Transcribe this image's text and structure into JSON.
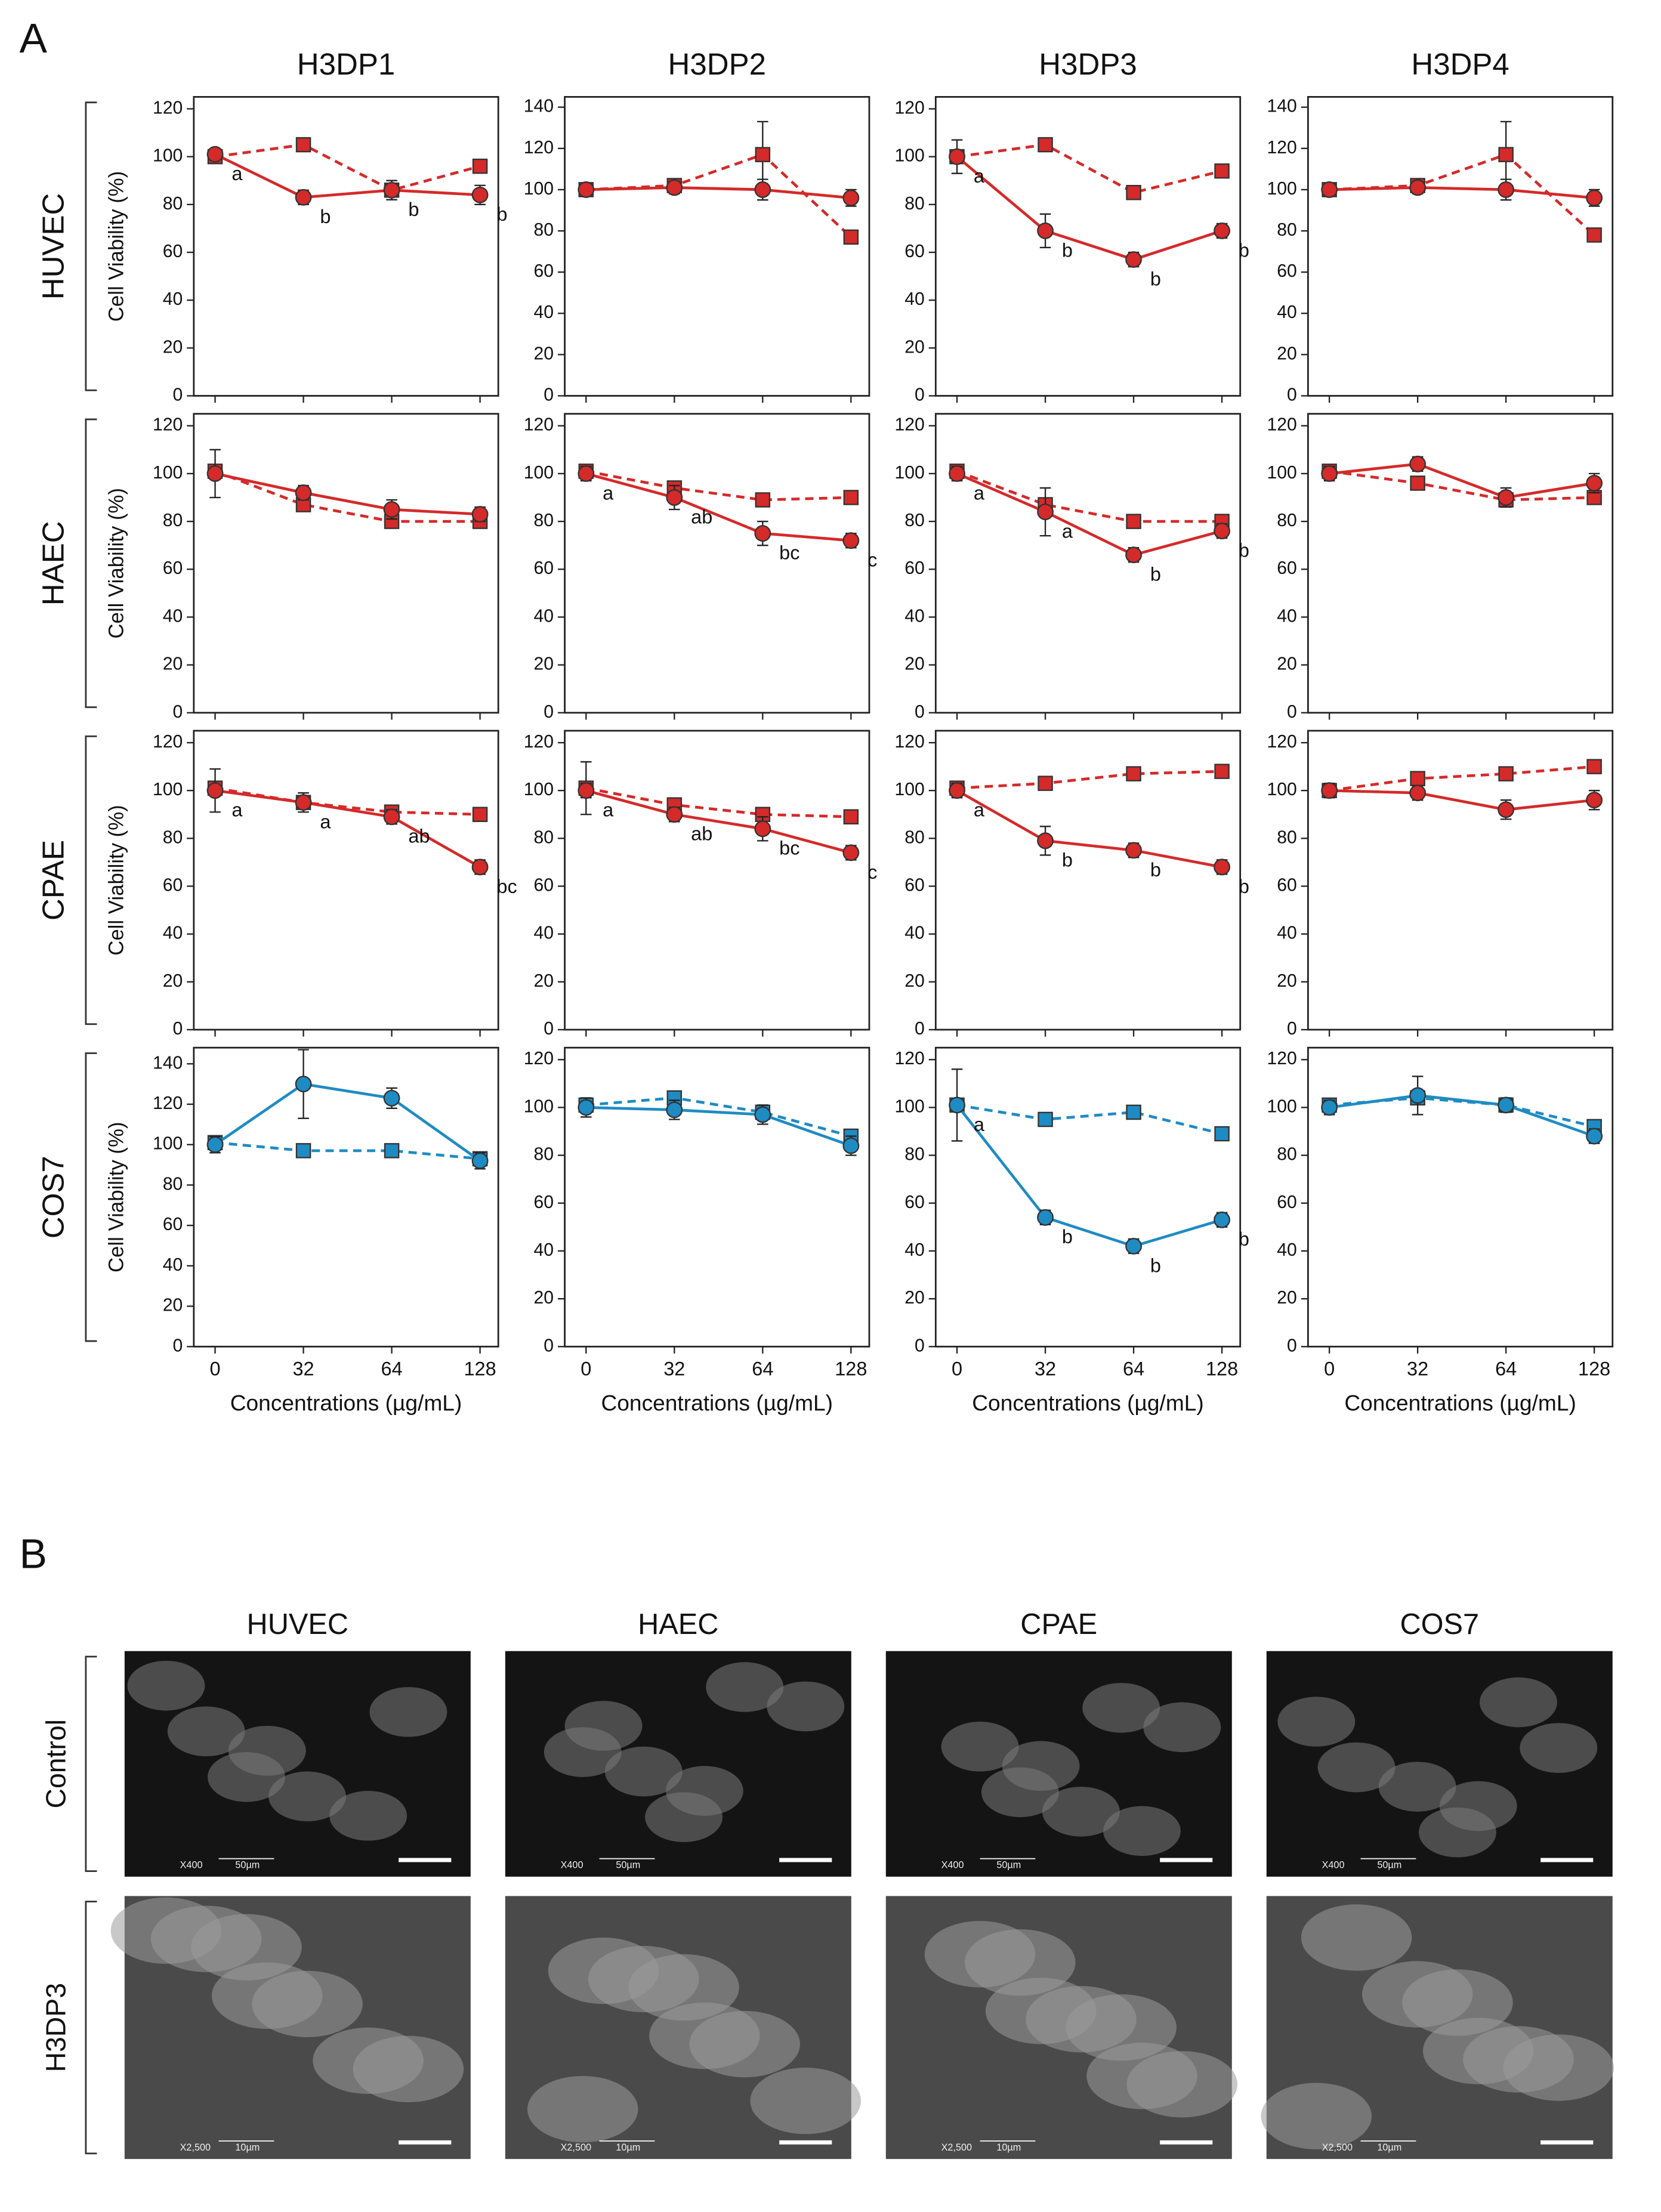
{
  "panels": [
    "A",
    "B"
  ],
  "chart_data": [
    {
      "type": "line",
      "title": "H3DP1",
      "row_label": "HUVEC",
      "row_color": "#d42a2a",
      "ylabel": "Cell Viability (%)",
      "categories": [
        null,
        null,
        null,
        null
      ],
      "ylim": [
        0,
        125
      ],
      "yticks": [
        0,
        20,
        40,
        60,
        80,
        100,
        120
      ],
      "series": [
        {
          "color": "#d42a2a",
          "marker": "circle",
          "dashed": false,
          "values": [
            101,
            83,
            86,
            84
          ],
          "errors": [
            1,
            3,
            4,
            4
          ]
        },
        {
          "color": "#d42a2a",
          "marker": "square",
          "dashed": true,
          "values": [
            100,
            105,
            86,
            96
          ],
          "errors": [
            1,
            1,
            1,
            1
          ]
        }
      ],
      "point_labels": [
        "a",
        "b",
        "b",
        "b"
      ]
    },
    {
      "type": "line",
      "title": "H3DP2",
      "categories": [
        null,
        null,
        null,
        null
      ],
      "ylim": [
        0,
        145
      ],
      "yticks": [
        0,
        20,
        40,
        60,
        80,
        100,
        120,
        140
      ],
      "series": [
        {
          "color": "#d42a2a",
          "marker": "circle",
          "dashed": false,
          "values": [
            100,
            101,
            100,
            96
          ],
          "errors": [
            3,
            3,
            5,
            4
          ]
        },
        {
          "color": "#d42a2a",
          "marker": "square",
          "dashed": true,
          "values": [
            100,
            102,
            117,
            77
          ],
          "errors": [
            2,
            2,
            16,
            2
          ]
        }
      ]
    },
    {
      "type": "line",
      "title": "H3DP3",
      "categories": [
        null,
        null,
        null,
        null
      ],
      "ylim": [
        0,
        125
      ],
      "yticks": [
        0,
        20,
        40,
        60,
        80,
        100,
        120
      ],
      "series": [
        {
          "color": "#d42a2a",
          "marker": "circle",
          "dashed": false,
          "values": [
            100,
            69,
            57,
            69
          ],
          "errors": [
            7,
            7,
            3,
            3
          ]
        },
        {
          "color": "#d42a2a",
          "marker": "square",
          "dashed": true,
          "values": [
            100,
            105,
            85,
            94
          ],
          "errors": [
            2,
            1,
            1,
            1
          ]
        }
      ],
      "point_labels": [
        "a",
        "b",
        "b",
        "b"
      ]
    },
    {
      "type": "line",
      "title": "H3DP4",
      "categories": [
        null,
        null,
        null,
        null
      ],
      "ylim": [
        0,
        145
      ],
      "yticks": [
        0,
        20,
        40,
        60,
        80,
        100,
        120,
        140
      ],
      "series": [
        {
          "color": "#d42a2a",
          "marker": "circle",
          "dashed": false,
          "values": [
            100,
            101,
            100,
            96
          ],
          "errors": [
            3,
            3,
            5,
            4
          ]
        },
        {
          "color": "#d42a2a",
          "marker": "square",
          "dashed": true,
          "values": [
            100,
            102,
            117,
            78
          ],
          "errors": [
            2,
            2,
            16,
            2
          ]
        }
      ]
    },
    {
      "type": "line",
      "row_label": "HAEC",
      "row_color": "#d42a2a",
      "ylabel": "Cell Viability (%)",
      "categories": [
        null,
        null,
        null,
        null
      ],
      "ylim": [
        0,
        125
      ],
      "yticks": [
        0,
        20,
        40,
        60,
        80,
        100,
        120
      ],
      "series": [
        {
          "color": "#d42a2a",
          "marker": "circle",
          "dashed": false,
          "values": [
            100,
            92,
            85,
            83
          ],
          "errors": [
            10,
            3,
            4,
            3
          ]
        },
        {
          "color": "#d42a2a",
          "marker": "square",
          "dashed": true,
          "values": [
            101,
            87,
            80,
            80
          ],
          "errors": [
            1,
            1,
            1,
            1
          ]
        }
      ]
    },
    {
      "type": "line",
      "categories": [
        null,
        null,
        null,
        null
      ],
      "ylim": [
        0,
        125
      ],
      "yticks": [
        0,
        20,
        40,
        60,
        80,
        100,
        120
      ],
      "series": [
        {
          "color": "#d42a2a",
          "marker": "circle",
          "dashed": false,
          "values": [
            100,
            90,
            75,
            72
          ],
          "errors": [
            3,
            5,
            5,
            3
          ]
        },
        {
          "color": "#d42a2a",
          "marker": "square",
          "dashed": true,
          "values": [
            101,
            94,
            89,
            90
          ],
          "errors": [
            1,
            1,
            1,
            1
          ]
        }
      ],
      "point_labels": [
        "a",
        "ab",
        "bc",
        "c"
      ]
    },
    {
      "type": "line",
      "categories": [
        null,
        null,
        null,
        null
      ],
      "ylim": [
        0,
        125
      ],
      "yticks": [
        0,
        20,
        40,
        60,
        80,
        100,
        120
      ],
      "series": [
        {
          "color": "#d42a2a",
          "marker": "circle",
          "dashed": false,
          "values": [
            100,
            84,
            66,
            76
          ],
          "errors": [
            3,
            10,
            3,
            3
          ]
        },
        {
          "color": "#d42a2a",
          "marker": "square",
          "dashed": true,
          "values": [
            101,
            87,
            80,
            80
          ],
          "errors": [
            1,
            1,
            1,
            1
          ]
        }
      ],
      "point_labels": [
        "a",
        "a",
        "b",
        "b"
      ]
    },
    {
      "type": "line",
      "categories": [
        null,
        null,
        null,
        null
      ],
      "ylim": [
        0,
        125
      ],
      "yticks": [
        0,
        20,
        40,
        60,
        80,
        100,
        120
      ],
      "series": [
        {
          "color": "#d42a2a",
          "marker": "circle",
          "dashed": false,
          "values": [
            100,
            104,
            90,
            96
          ],
          "errors": [
            3,
            3,
            4,
            4
          ]
        },
        {
          "color": "#d42a2a",
          "marker": "square",
          "dashed": true,
          "values": [
            101,
            96,
            89,
            90
          ],
          "errors": [
            1,
            1,
            1,
            1
          ]
        }
      ]
    },
    {
      "type": "line",
      "row_label": "CPAE",
      "row_color": "#d42a2a",
      "ylabel": "Cell Viability (%)",
      "categories": [
        null,
        null,
        null,
        null
      ],
      "ylim": [
        0,
        125
      ],
      "yticks": [
        0,
        20,
        40,
        60,
        80,
        100,
        120
      ],
      "series": [
        {
          "color": "#d42a2a",
          "marker": "circle",
          "dashed": false,
          "values": [
            100,
            95,
            89,
            68
          ],
          "errors": [
            9,
            4,
            3,
            3
          ]
        },
        {
          "color": "#d42a2a",
          "marker": "square",
          "dashed": true,
          "values": [
            101,
            95,
            91,
            90
          ],
          "errors": [
            1,
            1,
            1,
            1
          ]
        }
      ],
      "point_labels": [
        "a",
        "a",
        "ab",
        "bc"
      ]
    },
    {
      "type": "line",
      "categories": [
        null,
        null,
        null,
        null
      ],
      "ylim": [
        0,
        125
      ],
      "yticks": [
        0,
        20,
        40,
        60,
        80,
        100,
        120
      ],
      "series": [
        {
          "color": "#d42a2a",
          "marker": "circle",
          "dashed": false,
          "values": [
            100,
            90,
            84,
            74
          ],
          "errors": [
            3,
            3,
            5,
            3
          ]
        },
        {
          "color": "#d42a2a",
          "marker": "square",
          "dashed": true,
          "values": [
            101,
            94,
            90,
            89
          ],
          "errors": [
            11,
            1,
            1,
            1
          ]
        }
      ],
      "point_labels": [
        "a",
        "ab",
        "bc",
        "c"
      ]
    },
    {
      "type": "line",
      "categories": [
        null,
        null,
        null,
        null
      ],
      "ylim": [
        0,
        125
      ],
      "yticks": [
        0,
        20,
        40,
        60,
        80,
        100,
        120
      ],
      "series": [
        {
          "color": "#d42a2a",
          "marker": "circle",
          "dashed": false,
          "values": [
            100,
            79,
            75,
            68
          ],
          "errors": [
            3,
            6,
            3,
            3
          ]
        },
        {
          "color": "#d42a2a",
          "marker": "square",
          "dashed": true,
          "values": [
            101,
            103,
            107,
            108
          ],
          "errors": [
            1,
            1,
            1,
            1
          ]
        }
      ],
      "point_labels": [
        "a",
        "b",
        "b",
        "b"
      ]
    },
    {
      "type": "line",
      "categories": [
        null,
        null,
        null,
        null
      ],
      "ylim": [
        0,
        125
      ],
      "yticks": [
        0,
        20,
        40,
        60,
        80,
        100,
        120
      ],
      "series": [
        {
          "color": "#d42a2a",
          "marker": "circle",
          "dashed": false,
          "values": [
            100,
            99,
            92,
            96
          ],
          "errors": [
            3,
            3,
            4,
            4
          ]
        },
        {
          "color": "#d42a2a",
          "marker": "square",
          "dashed": true,
          "values": [
            100,
            105,
            107,
            110
          ],
          "errors": [
            1,
            1,
            1,
            1
          ]
        }
      ]
    },
    {
      "type": "line",
      "row_label": "COS7",
      "row_color": "#1f8bc3",
      "ylabel": "Cell Viability (%)",
      "xlabel": "Concentrations (µg/mL)",
      "categories": [
        "0",
        "32",
        "64",
        "128"
      ],
      "ylim": [
        0,
        148
      ],
      "yticks": [
        0,
        20,
        40,
        60,
        80,
        100,
        120,
        140
      ],
      "series": [
        {
          "color": "#1f8bc3",
          "marker": "circle",
          "dashed": false,
          "values": [
            100,
            130,
            123,
            92
          ],
          "errors": [
            4,
            17,
            5,
            4
          ]
        },
        {
          "color": "#1f8bc3",
          "marker": "square",
          "dashed": true,
          "values": [
            101,
            97,
            97,
            93
          ],
          "errors": [
            1,
            1,
            1,
            1
          ]
        }
      ]
    },
    {
      "type": "line",
      "xlabel": "Concentrations (µg/mL)",
      "categories": [
        "0",
        "32",
        "64",
        "128"
      ],
      "ylim": [
        0,
        125
      ],
      "yticks": [
        0,
        20,
        40,
        60,
        80,
        100,
        120
      ],
      "series": [
        {
          "color": "#1f8bc3",
          "marker": "circle",
          "dashed": false,
          "values": [
            100,
            99,
            97,
            84
          ],
          "errors": [
            4,
            4,
            4,
            4
          ]
        },
        {
          "color": "#1f8bc3",
          "marker": "square",
          "dashed": true,
          "values": [
            101,
            104,
            98,
            88
          ],
          "errors": [
            1,
            1,
            1,
            1
          ]
        }
      ]
    },
    {
      "type": "line",
      "xlabel": "Concentrations (µg/mL)",
      "categories": [
        "0",
        "32",
        "64",
        "128"
      ],
      "ylim": [
        0,
        125
      ],
      "yticks": [
        0,
        20,
        40,
        60,
        80,
        100,
        120
      ],
      "series": [
        {
          "color": "#1f8bc3",
          "marker": "circle",
          "dashed": false,
          "values": [
            101,
            54,
            42,
            53
          ],
          "errors": [
            15,
            3,
            3,
            3
          ]
        },
        {
          "color": "#1f8bc3",
          "marker": "square",
          "dashed": true,
          "values": [
            101,
            95,
            98,
            89
          ],
          "errors": [
            1,
            1,
            1,
            1
          ]
        }
      ],
      "point_labels": [
        "a",
        "b",
        "b",
        "b"
      ]
    },
    {
      "type": "line",
      "xlabel": "Concentrations (µg/mL)",
      "categories": [
        "0",
        "32",
        "64",
        "128"
      ],
      "ylim": [
        0,
        125
      ],
      "yticks": [
        0,
        20,
        40,
        60,
        80,
        100,
        120
      ],
      "series": [
        {
          "color": "#1f8bc3",
          "marker": "circle",
          "dashed": false,
          "values": [
            100,
            105,
            101,
            88
          ],
          "errors": [
            3,
            8,
            3,
            3
          ]
        },
        {
          "color": "#1f8bc3",
          "marker": "square",
          "dashed": true,
          "values": [
            101,
            104,
            101,
            92
          ],
          "errors": [
            1,
            1,
            1,
            1
          ]
        }
      ]
    }
  ],
  "micrographs": {
    "columns": [
      {
        "name": "HUVEC",
        "color": "#d42a2a"
      },
      {
        "name": "HAEC",
        "color": "#d42a2a"
      },
      {
        "name": "CPAE",
        "color": "#d42a2a"
      },
      {
        "name": "COS7",
        "color": "#1f8bc3"
      }
    ],
    "rows": [
      {
        "label": "Control",
        "magnification": "X400",
        "scale": "50µm"
      },
      {
        "label": "H3DP3",
        "magnification": "X2,500",
        "scale": "10µm"
      }
    ]
  }
}
